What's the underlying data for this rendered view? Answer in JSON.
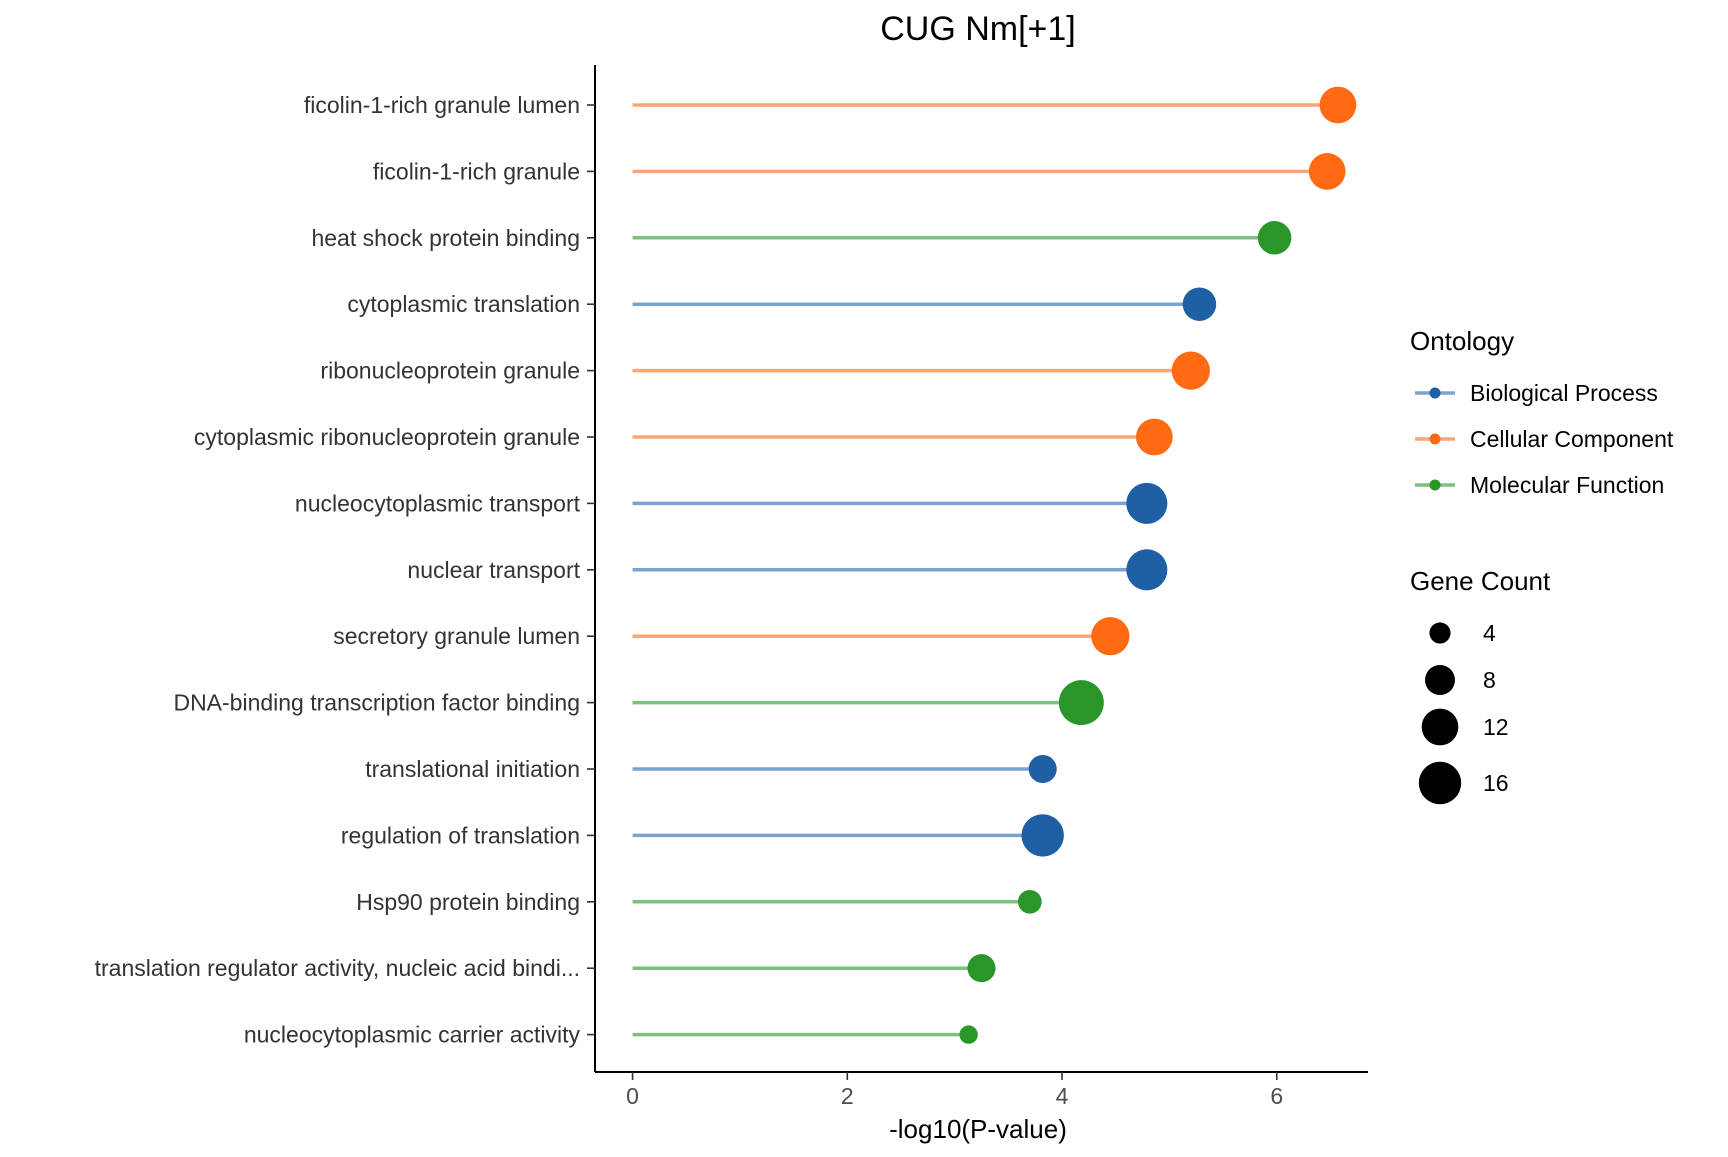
{
  "chart_data": {
    "type": "lollipop",
    "title": "CUG Nm[+1]",
    "xlabel": "-log10(P-value)",
    "ylabel": "",
    "xlim": [
      -0.35,
      6.85
    ],
    "x_ticks": [
      "0",
      "2",
      "4",
      "6"
    ],
    "grid": false,
    "legend_position": "right",
    "ontology_legend": {
      "title": "Ontology",
      "entries": [
        {
          "name": "Biological Process",
          "color": "#1f5fa6",
          "line_color": "#7ba3cf"
        },
        {
          "name": "Cellular Component",
          "color": "#ff6a13",
          "line_color": "#f7a677"
        },
        {
          "name": "Molecular Function",
          "color": "#2a962a",
          "line_color": "#7ebf7e"
        }
      ]
    },
    "size_legend": {
      "title": "Gene Count",
      "entries": [
        {
          "label": "4",
          "value": 4
        },
        {
          "label": "8",
          "value": 8
        },
        {
          "label": "12",
          "value": 12
        },
        {
          "label": "16",
          "value": 16
        }
      ]
    },
    "points": [
      {
        "term": "ficolin-1-rich granule lumen",
        "value": 6.57,
        "ontology": "Cellular Component",
        "gene_count": 12
      },
      {
        "term": "ficolin-1-rich granule",
        "value": 6.47,
        "ontology": "Cellular Component",
        "gene_count": 12
      },
      {
        "term": "heat shock protein binding",
        "value": 5.98,
        "ontology": "Molecular Function",
        "gene_count": 10
      },
      {
        "term": "cytoplasmic translation",
        "value": 5.28,
        "ontology": "Biological Process",
        "gene_count": 10
      },
      {
        "term": "ribonucleoprotein granule",
        "value": 5.2,
        "ontology": "Cellular Component",
        "gene_count": 13
      },
      {
        "term": "cytoplasmic ribonucleoprotein granule",
        "value": 4.86,
        "ontology": "Cellular Component",
        "gene_count": 12
      },
      {
        "term": "nucleocytoplasmic transport",
        "value": 4.79,
        "ontology": "Biological Process",
        "gene_count": 15
      },
      {
        "term": "nuclear transport",
        "value": 4.79,
        "ontology": "Biological Process",
        "gene_count": 15
      },
      {
        "term": "secretory granule lumen",
        "value": 4.45,
        "ontology": "Cellular Component",
        "gene_count": 13
      },
      {
        "term": "DNA-binding transcription factor binding",
        "value": 4.18,
        "ontology": "Molecular Function",
        "gene_count": 18
      },
      {
        "term": "translational initiation",
        "value": 3.82,
        "ontology": "Biological Process",
        "gene_count": 7
      },
      {
        "term": "regulation of translation",
        "value": 3.82,
        "ontology": "Biological Process",
        "gene_count": 16
      },
      {
        "term": "Hsp90 protein binding",
        "value": 3.7,
        "ontology": "Molecular Function",
        "gene_count": 5
      },
      {
        "term": "translation regulator activity, nucleic acid bindi...",
        "value": 3.25,
        "ontology": "Molecular Function",
        "gene_count": 7
      },
      {
        "term": "nucleocytoplasmic carrier activity",
        "value": 3.13,
        "ontology": "Molecular Function",
        "gene_count": 3
      }
    ]
  }
}
